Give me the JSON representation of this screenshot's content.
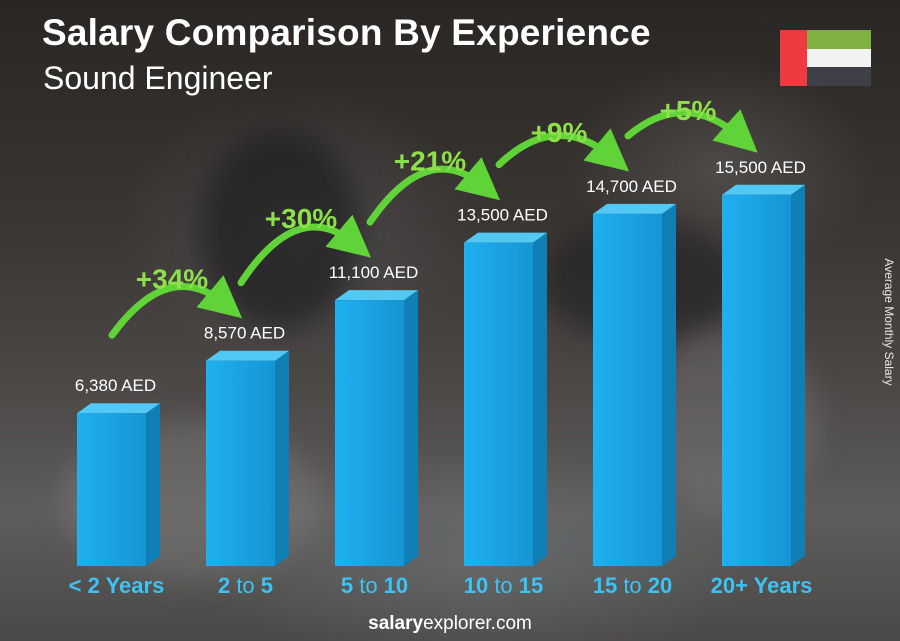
{
  "header": {
    "title": "Salary Comparison By Experience",
    "subtitle": "Sound Engineer"
  },
  "side_label": "Average Monthly Salary",
  "footer": {
    "brand_bold": "salary",
    "brand_rest": "explorer.com"
  },
  "flag": {
    "colors": [
      "#ef3a41",
      "#7fb041",
      "#f2f2f2",
      "#3f3f48"
    ],
    "icon": "uae-flag-icon"
  },
  "chart_data": {
    "type": "bar",
    "title": "Salary Comparison By Experience",
    "subtitle": "Sound Engineer",
    "ylabel": "Average Monthly Salary",
    "categories": [
      {
        "parts": [
          {
            "text": "< 2 Years",
            "bold": true
          }
        ]
      },
      {
        "parts": [
          {
            "text": "2",
            "bold": true
          },
          {
            "text": " to ",
            "bold": false
          },
          {
            "text": "5",
            "bold": true
          }
        ]
      },
      {
        "parts": [
          {
            "text": "5",
            "bold": true
          },
          {
            "text": " to ",
            "bold": false
          },
          {
            "text": "10",
            "bold": true
          }
        ]
      },
      {
        "parts": [
          {
            "text": "10",
            "bold": true
          },
          {
            "text": " to ",
            "bold": false
          },
          {
            "text": "15",
            "bold": true
          }
        ]
      },
      {
        "parts": [
          {
            "text": "15",
            "bold": true
          },
          {
            "text": " to ",
            "bold": false
          },
          {
            "text": "20",
            "bold": true
          }
        ]
      },
      {
        "parts": [
          {
            "text": "20+ Years",
            "bold": true
          }
        ]
      }
    ],
    "values": [
      6380,
      8570,
      11100,
      13500,
      14700,
      15500
    ],
    "value_labels": [
      "6,380 AED",
      "8,570 AED",
      "11,100 AED",
      "13,500 AED",
      "14,700 AED",
      "15,500 AED"
    ],
    "increases": [
      "+34%",
      "+30%",
      "+21%",
      "+9%",
      "+5%"
    ],
    "colors": {
      "bar_front": "#1aa7e8",
      "bar_side": "#0f7fb6",
      "bar_top": "#52c8f5",
      "category_text": "#3cc3f5",
      "increase_text": "#8ee04a",
      "arrow": "#5fd337"
    }
  }
}
